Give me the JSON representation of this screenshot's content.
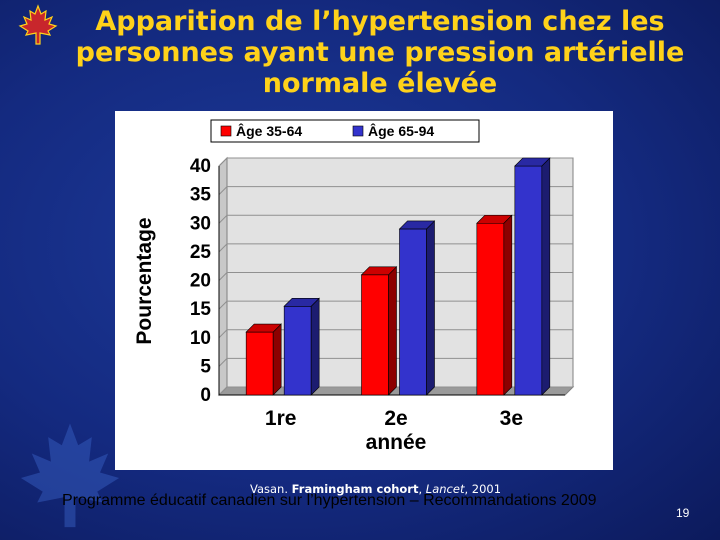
{
  "slide": {
    "title": "Apparition de l’hypertension chez les personnes ayant une pression artérielle normale élevée",
    "citation_prefix": "Vasan. ",
    "citation_study": "Framingham cohort",
    "citation_sep": ", ",
    "citation_journal": "Lancet",
    "citation_year": ", 2001",
    "footer": "Programme éducatif canadien sur l’hypertension – Recommandations 2009",
    "page_number": "19"
  },
  "chart_data": {
    "type": "bar",
    "categories": [
      "1re",
      "2e",
      "3e"
    ],
    "series": [
      {
        "name": "Âge 35-64",
        "color": "#ff0000",
        "values": [
          11,
          21,
          30
        ]
      },
      {
        "name": "Âge 65-94",
        "color": "#3333cc",
        "values": [
          15.5,
          29,
          40
        ]
      }
    ],
    "xlabel": "année",
    "ylabel": "Pourcentage",
    "ylim": [
      0,
      40
    ],
    "yticks": [
      "0",
      "5",
      "10",
      "15",
      "20",
      "25",
      "30",
      "35",
      "40"
    ],
    "grid": true,
    "style": "3d",
    "legend_position": "top"
  }
}
